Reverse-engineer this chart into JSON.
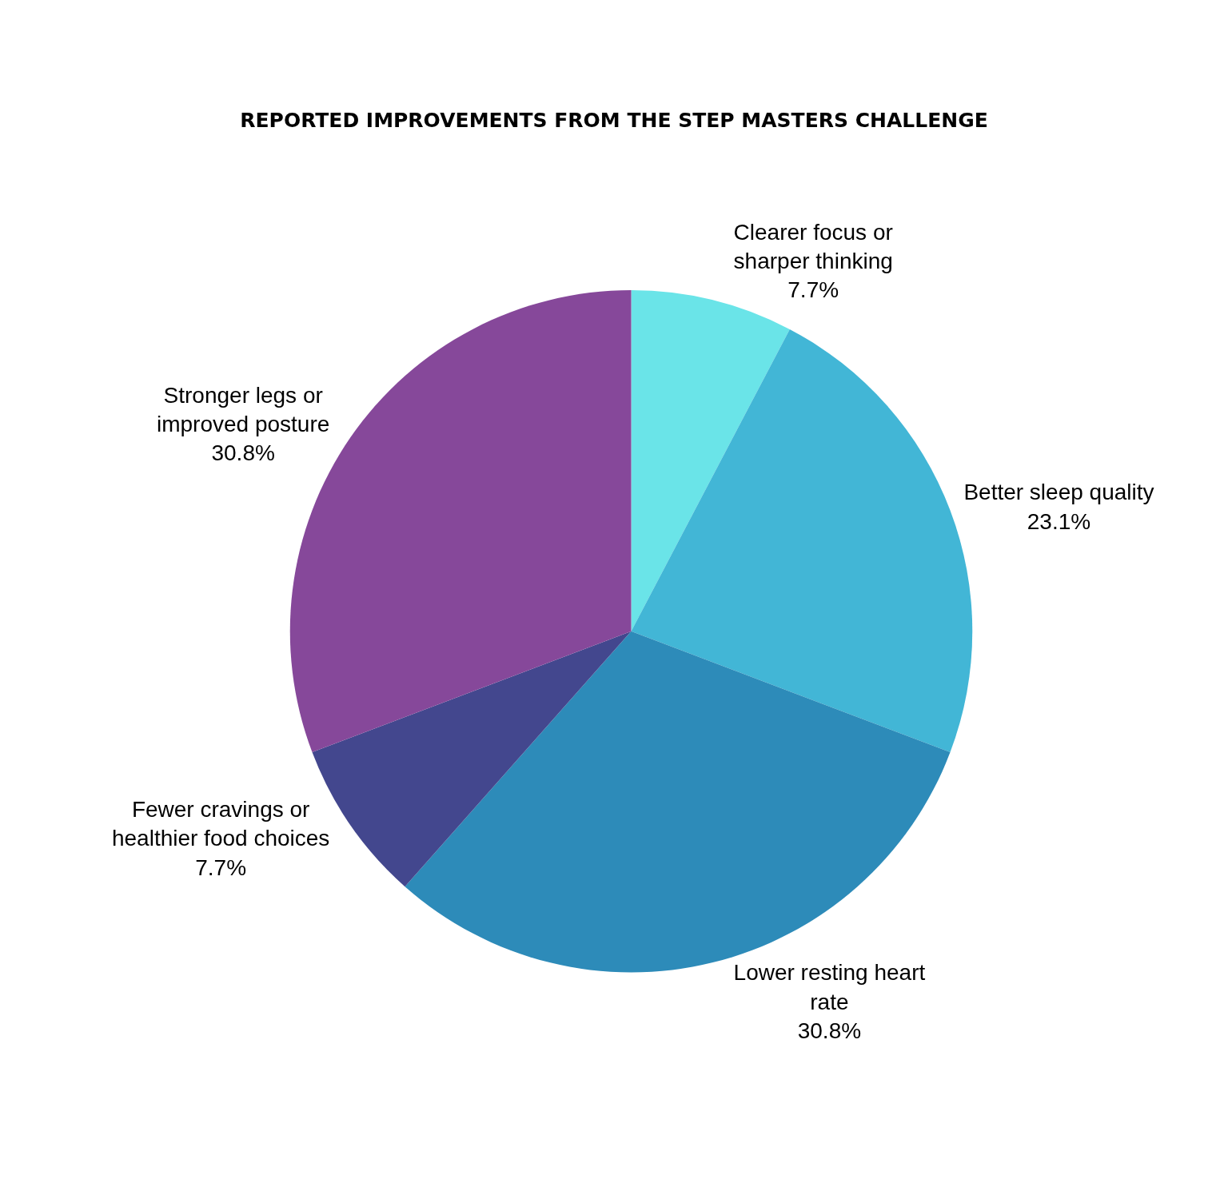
{
  "chart_data": {
    "type": "pie",
    "title": "REPORTED IMPROVEMENTS FROM THE STEP MASTERS CHALLENGE",
    "categories": [
      "Clearer focus or sharper thinking",
      "Better sleep quality",
      "Lower resting heart rate",
      "Fewer cravings or healthier food choices",
      "Stronger legs or improved posture"
    ],
    "values": [
      7.7,
      23.1,
      30.8,
      7.7,
      30.8
    ],
    "colors": [
      "#6ae4e8",
      "#42b6d6",
      "#2d8bb9",
      "#43478e",
      "#86489a"
    ],
    "value_labels": [
      "7.7%",
      "23.1%",
      "30.8%",
      "7.7%",
      "30.8%"
    ],
    "legend": false
  }
}
